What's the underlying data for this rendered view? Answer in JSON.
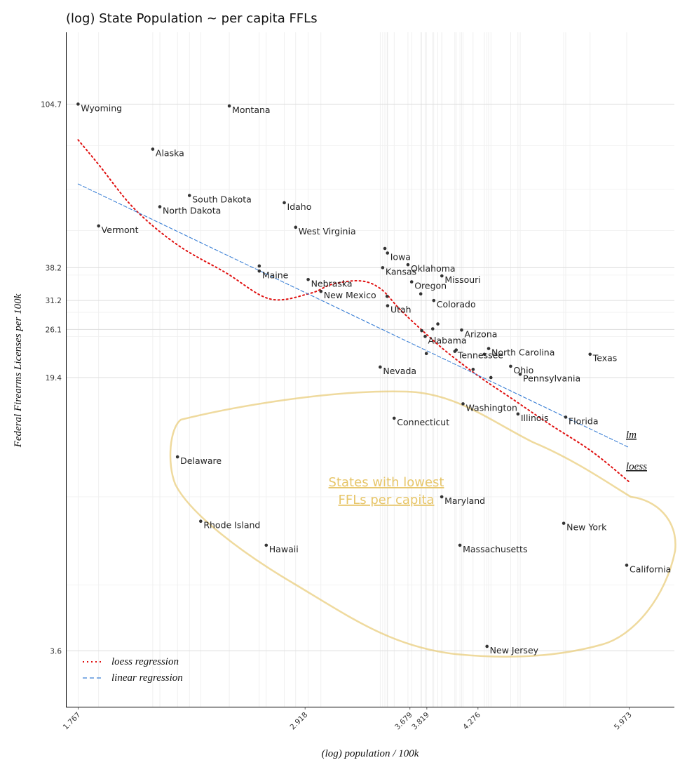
{
  "chart_data": {
    "type": "scatter",
    "title": "(log) State Population ~ per capita FFLs",
    "xlabel": "(log) population / 100k",
    "ylabel": "Federal Firearms Licenses per 100k",
    "x_scale": "log",
    "y_scale": "log",
    "xlim": [
      1.72,
      6.6
    ],
    "ylim": [
      2.55,
      163
    ],
    "x_ticks": [
      "1.767",
      "2.918",
      "3.679",
      "3.819",
      "4.276",
      "5.973"
    ],
    "y_ticks": [
      "104.7",
      "38.2",
      "31.2",
      "26.1",
      "19.4",
      "3.6"
    ],
    "grid": true,
    "legend_position": "bottom-left",
    "legend": [
      "loess regression",
      "linear regression"
    ],
    "lm_label": "lm",
    "loess_label": "loess",
    "annotation": "States with lowest FFLs per capita",
    "colors": {
      "points": "#333333",
      "loess": "#e01010",
      "lm": "#3a7fd5",
      "annotation": "#e7c66a"
    },
    "points": [
      {
        "label": "Wyoming",
        "x": 1.767,
        "y": 104.7
      },
      {
        "label": "Montana",
        "x": 2.468,
        "y": 103.5
      },
      {
        "label": "Alaska",
        "x": 2.084,
        "y": 79.3
      },
      {
        "label": "South Dakota",
        "x": 2.26,
        "y": 59.6
      },
      {
        "label": "North Dakota",
        "x": 2.117,
        "y": 55.6
      },
      {
        "label": "Idaho",
        "x": 2.787,
        "y": 57.0
      },
      {
        "label": "Vermont",
        "x": 1.849,
        "y": 49.4
      },
      {
        "label": "West Virginia",
        "x": 2.858,
        "y": 49.0
      },
      {
        "label": "Maine",
        "x": 2.637,
        "y": 37.4
      },
      {
        "label": "Iowa",
        "x": 3.501,
        "y": 41.8
      },
      {
        "label": "Kansas",
        "x": 3.464,
        "y": 38.2
      },
      {
        "label": "Oklahoma",
        "x": 3.663,
        "y": 38.9
      },
      {
        "label": "Missouri",
        "x": 3.948,
        "y": 36.3
      },
      {
        "label": "Nebraska",
        "x": 2.938,
        "y": 35.5
      },
      {
        "label": "New Mexico",
        "x": 3.022,
        "y": 33.0
      },
      {
        "label": "Oregon",
        "x": 3.693,
        "y": 35.0
      },
      {
        "label": "Utah",
        "x": 3.502,
        "y": 30.2
      },
      {
        "label": "Colorado",
        "x": 3.878,
        "y": 31.2
      },
      {
        "label": "Arizona",
        "x": 4.124,
        "y": 26.0
      },
      {
        "label": "Alabama",
        "x": 3.805,
        "y": 25.0
      },
      {
        "label": "Tennessee",
        "x": 4.063,
        "y": 22.8
      },
      {
        "label": "North Carolina",
        "x": 4.378,
        "y": 23.2
      },
      {
        "label": "Texas",
        "x": 5.478,
        "y": 22.4
      },
      {
        "label": "Ohio",
        "x": 4.596,
        "y": 20.8
      },
      {
        "label": "Pennsylvania",
        "x": 4.694,
        "y": 19.8
      },
      {
        "label": "Nevada",
        "x": 3.445,
        "y": 20.7
      },
      {
        "label": "Washington",
        "x": 4.137,
        "y": 16.5
      },
      {
        "label": "Illinois",
        "x": 4.671,
        "y": 15.5
      },
      {
        "label": "Florida",
        "x": 5.191,
        "y": 15.2
      },
      {
        "label": "Connecticut",
        "x": 3.553,
        "y": 15.1
      },
      {
        "label": "Delaware",
        "x": 2.201,
        "y": 11.9
      },
      {
        "label": "Maryland",
        "x": 3.947,
        "y": 9.3
      },
      {
        "label": "Rhode Island",
        "x": 2.317,
        "y": 8.0
      },
      {
        "label": "New York",
        "x": 5.168,
        "y": 7.9
      },
      {
        "label": "Hawaii",
        "x": 2.678,
        "y": 6.9
      },
      {
        "label": "Massachusetts",
        "x": 4.109,
        "y": 6.9
      },
      {
        "label": "California",
        "x": 5.94,
        "y": 6.1
      },
      {
        "label": "New Jersey",
        "x": 4.362,
        "y": 3.7
      }
    ],
    "unlabeled_points": [
      {
        "x": 3.481,
        "y": 43.0
      },
      {
        "x": 2.637,
        "y": 38.6
      },
      {
        "x": 3.498,
        "y": 32.0
      },
      {
        "x": 3.768,
        "y": 32.5
      },
      {
        "x": 3.913,
        "y": 27.0
      },
      {
        "x": 3.869,
        "y": 26.2
      },
      {
        "x": 3.776,
        "y": 25.9
      },
      {
        "x": 3.815,
        "y": 22.5
      },
      {
        "x": 4.075,
        "y": 23.0
      },
      {
        "x": 4.337,
        "y": 22.4
      },
      {
        "x": 4.23,
        "y": 20.4
      },
      {
        "x": 4.4,
        "y": 19.4
      }
    ],
    "series": [
      {
        "name": "loess regression",
        "x": [
          1.767,
          1.85,
          2.0,
          2.2,
          2.45,
          2.7,
          2.95,
          3.1,
          3.3,
          3.45,
          3.6,
          3.8,
          4.0,
          4.3,
          4.6,
          5.0,
          5.5,
          5.973
        ],
        "y": [
          84,
          72,
          55,
          44,
          37,
          31.5,
          32.6,
          34.5,
          35.2,
          33.5,
          29.5,
          25.6,
          22.6,
          19.4,
          17.1,
          14.6,
          12.3,
          10.2
        ]
      },
      {
        "name": "linear regression",
        "x": [
          1.767,
          5.973
        ],
        "y": [
          64,
          12.6
        ]
      }
    ]
  }
}
